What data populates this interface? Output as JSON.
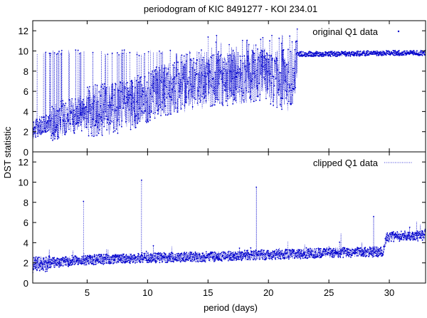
{
  "figure": {
    "title": "periodogram of KIC 8491277 - KOI 234.01",
    "ylabel": "DST statistic",
    "xlabel": "period (days)"
  },
  "chart_data": [
    {
      "type": "line",
      "panel": "top",
      "series": [
        {
          "name": "original Q1 data",
          "color": "#0000cc"
        }
      ],
      "legend": "top-right",
      "xlim": [
        0.5,
        33
      ],
      "ylim": [
        0,
        13
      ],
      "xticks": [
        5,
        10,
        15,
        20,
        25,
        30
      ],
      "yticks": [
        0,
        2,
        4,
        6,
        8,
        10,
        12
      ],
      "grid": false,
      "description_points": {
        "x": [
          0.5,
          1,
          2,
          3,
          5,
          8,
          11,
          15,
          19,
          22,
          22.4,
          26,
          30,
          33
        ],
        "y": [
          2.0,
          2.6,
          2.8,
          3.3,
          4.0,
          4.4,
          6.0,
          7.0,
          7.5,
          6.5,
          9.7,
          9.7,
          9.8,
          9.8
        ]
      }
    },
    {
      "type": "line",
      "panel": "bottom",
      "series": [
        {
          "name": "clipped Q1 data",
          "color": "#0000cc"
        }
      ],
      "legend": "top-right",
      "xlim": [
        0.5,
        33
      ],
      "ylim": [
        0,
        13
      ],
      "xticks": [
        5,
        10,
        15,
        20,
        25,
        30
      ],
      "yticks": [
        0,
        2,
        4,
        6,
        8,
        10,
        12
      ],
      "grid": false,
      "description_points": {
        "x": [
          0.5,
          2,
          5,
          10,
          15,
          19,
          20,
          25,
          29.5,
          29.8,
          33
        ],
        "y": [
          1.8,
          2.0,
          2.3,
          2.5,
          2.6,
          2.8,
          2.8,
          3.0,
          3.1,
          4.6,
          4.7
        ]
      },
      "spikes": [
        {
          "x": 4.7,
          "y": 8.1
        },
        {
          "x": 9.5,
          "y": 10.2
        },
        {
          "x": 19.0,
          "y": 9.5
        },
        {
          "x": 28.7,
          "y": 6.6
        }
      ]
    }
  ]
}
